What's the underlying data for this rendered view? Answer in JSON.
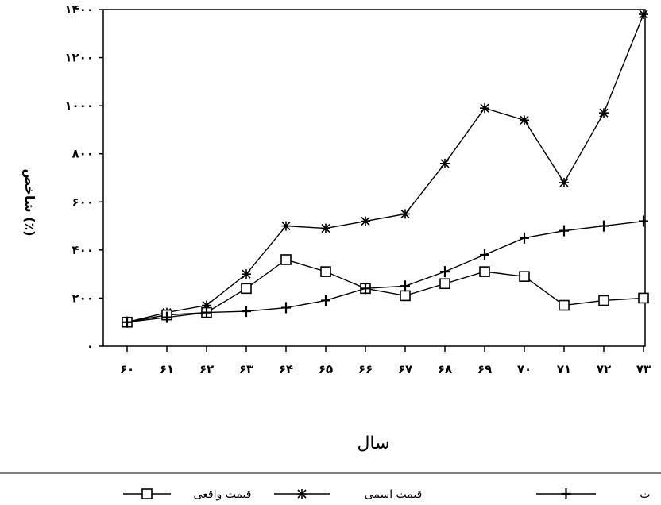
{
  "chart_data": {
    "type": "line",
    "title": "",
    "xlabel": "سال",
    "ylabel": "شاخص (٪)",
    "ylim": [
      0,
      1400
    ],
    "yticks": [
      0,
      200,
      400,
      600,
      800,
      1000,
      1200,
      1400
    ],
    "ytick_labels": [
      "٠",
      "٢٠٠",
      "۴٠٠",
      "۶٠٠",
      "٨٠٠",
      "١٠٠٠",
      "١٢٠٠",
      "١۴٠٠"
    ],
    "categories": [
      "۶٠",
      "۶١",
      "۶٢",
      "۶٣",
      "۶۴",
      "۶۵",
      "۶۶",
      "۶٧",
      "۶٨",
      "۶٩",
      "٧٠",
      "٧١",
      "٧٢",
      "٧٣"
    ],
    "grid": false,
    "legend_position": "bottom",
    "series": [
      {
        "name": "قیمت اسمی",
        "marker": "asterisk",
        "values": [
          100,
          140,
          170,
          300,
          500,
          490,
          520,
          550,
          760,
          990,
          940,
          680,
          970,
          1380
        ]
      },
      {
        "name": "قیمت واقعی",
        "marker": "square",
        "values": [
          100,
          130,
          140,
          240,
          360,
          310,
          240,
          210,
          260,
          310,
          290,
          170,
          190,
          200
        ]
      },
      {
        "name": "",
        "marker": "plus",
        "values": [
          100,
          120,
          140,
          145,
          160,
          190,
          240,
          250,
          310,
          380,
          450,
          480,
          500,
          520
        ]
      }
    ],
    "legend_labels": [
      "قیمت واقعی",
      "قیمت اسمی",
      "ت"
    ]
  }
}
